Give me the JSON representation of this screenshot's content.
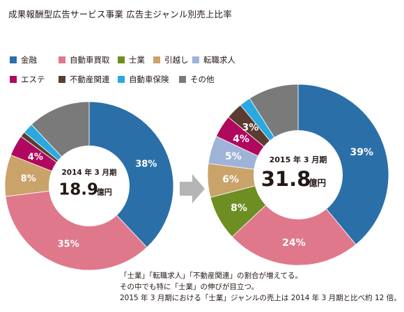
{
  "title": "成果報酬型広告サービス事業 広告主ジャンル別売上比率",
  "legend": [
    {
      "name": "金融",
      "color": "#2b6fa8"
    },
    {
      "name": "自動車買取",
      "color": "#e0788c"
    },
    {
      "name": "士業",
      "color": "#6d8e22"
    },
    {
      "name": "引越し",
      "color": "#c9a36a"
    },
    {
      "name": "転職求人",
      "color": "#9fb3d9"
    },
    {
      "name": "エステ",
      "color": "#b0085e"
    },
    {
      "name": "不動産関連",
      "color": "#5a3d30"
    },
    {
      "name": "自動車保険",
      "color": "#2aa9df"
    },
    {
      "name": "その他",
      "color": "#7a7a7a"
    }
  ],
  "chart_data": [
    {
      "type": "pie",
      "period": "2014 年 3 月期",
      "amount": "18.9",
      "unit": "億円",
      "categories": [
        "金融",
        "自動車買取",
        "士業",
        "引越し",
        "転職求人",
        "エステ",
        "不動産関連",
        "自動車保険",
        "その他"
      ],
      "values": [
        38,
        35,
        0,
        8,
        0,
        4,
        1,
        2,
        12
      ],
      "labels": [
        "38%",
        "35%",
        "",
        "8%",
        "",
        "4%",
        "",
        "",
        ""
      ]
    },
    {
      "type": "pie",
      "period": "2015 年 3 月期",
      "amount": "31.8",
      "unit": "億円",
      "categories": [
        "金融",
        "自動車買取",
        "士業",
        "引越し",
        "転職求人",
        "エステ",
        "不動産関連",
        "自動車保険",
        "その他"
      ],
      "values": [
        39,
        24,
        8,
        6,
        5,
        4,
        3,
        2,
        9
      ],
      "labels": [
        "39%",
        "24%",
        "8%",
        "6%",
        "5%",
        "4%",
        "3%",
        "",
        ""
      ]
    }
  ],
  "caption": [
    "「士業」「転職求人」「不動産関連」の割合が増えてる。",
    "その中でも特に「士業」の伸びが目立つ。",
    "2015 年 3 月期における「士業」ジャンルの売上は 2014 年 3 月期と比べ約 12 倍。"
  ]
}
